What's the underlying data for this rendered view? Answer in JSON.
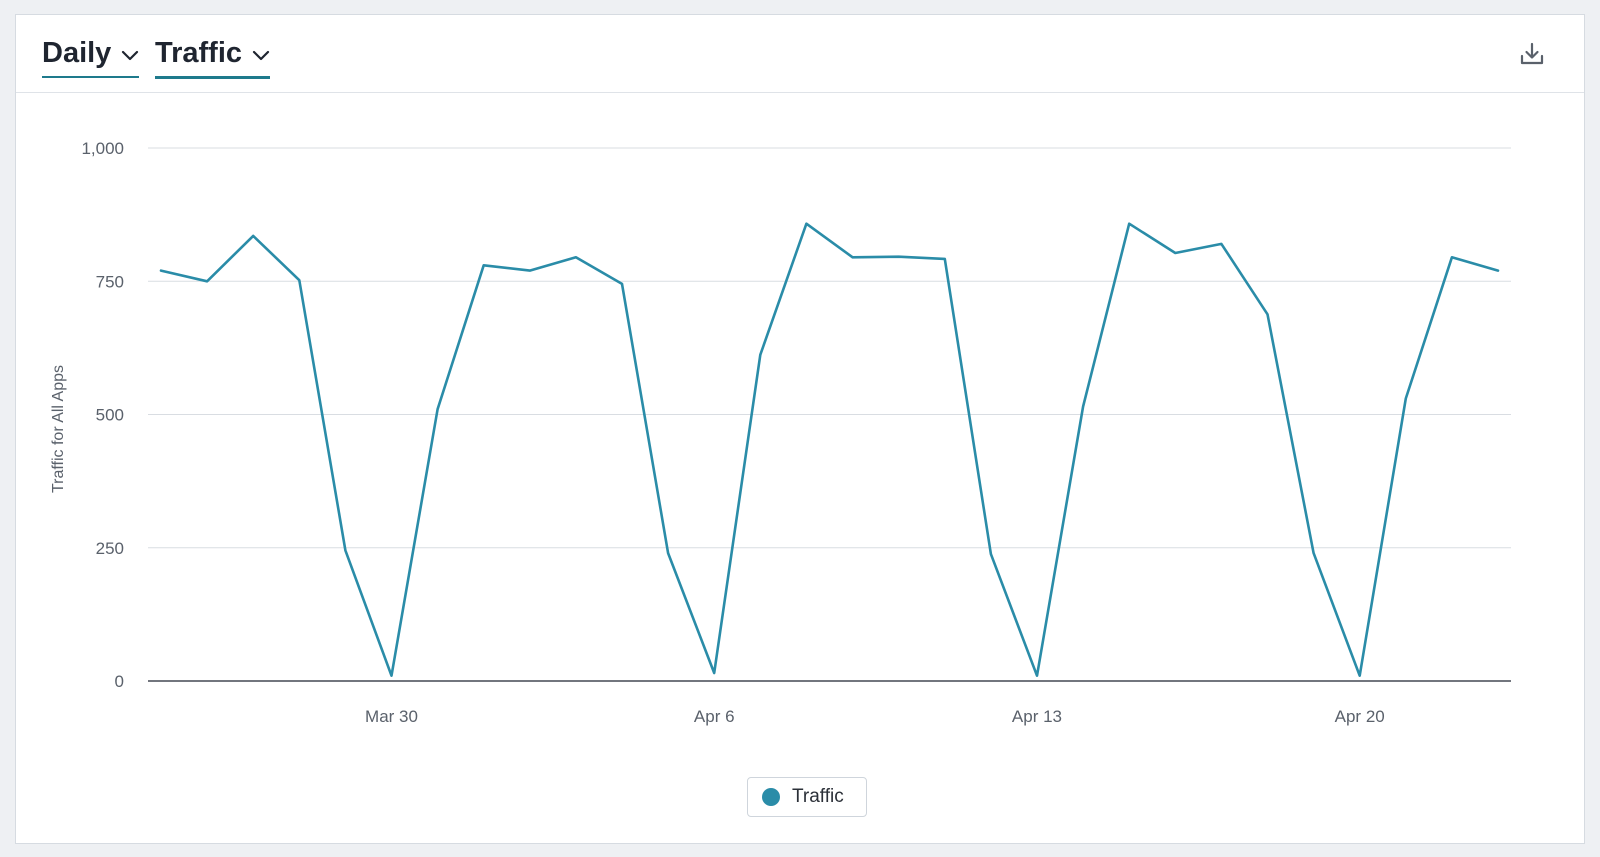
{
  "header": {
    "period_label": "Daily",
    "metric_label": "Traffic"
  },
  "icons": {
    "period_chevron": "chevron-down-icon",
    "metric_chevron": "chevron-down-icon",
    "download": "download-icon"
  },
  "colors": {
    "accent": "#1e7a8c",
    "series": "#2a8ca8"
  },
  "legend": {
    "label": "Traffic"
  },
  "chart_data": {
    "type": "line",
    "ylabel": "Traffic for All Apps",
    "xlabel": "",
    "ylim": [
      0,
      1000
    ],
    "yticks": [
      0,
      250,
      500,
      750,
      1000
    ],
    "ytick_labels": [
      "0",
      "250",
      "500",
      "750",
      "1,000"
    ],
    "xlim": [
      "2020-03-25",
      "2020-04-23"
    ],
    "xticks": [
      "2020-03-30",
      "2020-04-06",
      "2020-04-13",
      "2020-04-20"
    ],
    "xtick_labels": [
      "Mar 30",
      "Apr 6",
      "Apr 13",
      "Apr 20"
    ],
    "grid": true,
    "legend_position": "bottom-center",
    "series": [
      {
        "name": "Traffic",
        "x": [
          "2020-03-25",
          "2020-03-26",
          "2020-03-27",
          "2020-03-28",
          "2020-03-29",
          "2020-03-30",
          "2020-03-31",
          "2020-04-01",
          "2020-04-02",
          "2020-04-03",
          "2020-04-04",
          "2020-04-05",
          "2020-04-06",
          "2020-04-07",
          "2020-04-08",
          "2020-04-09",
          "2020-04-10",
          "2020-04-11",
          "2020-04-12",
          "2020-04-13",
          "2020-04-14",
          "2020-04-15",
          "2020-04-16",
          "2020-04-17",
          "2020-04-18",
          "2020-04-19",
          "2020-04-20",
          "2020-04-21",
          "2020-04-22",
          "2020-04-23"
        ],
        "values": [
          770,
          750,
          835,
          752,
          245,
          10,
          510,
          780,
          770,
          795,
          745,
          240,
          15,
          612,
          858,
          795,
          796,
          792,
          238,
          10,
          515,
          858,
          803,
          820,
          688,
          240,
          10,
          530,
          795,
          770
        ]
      }
    ]
  }
}
